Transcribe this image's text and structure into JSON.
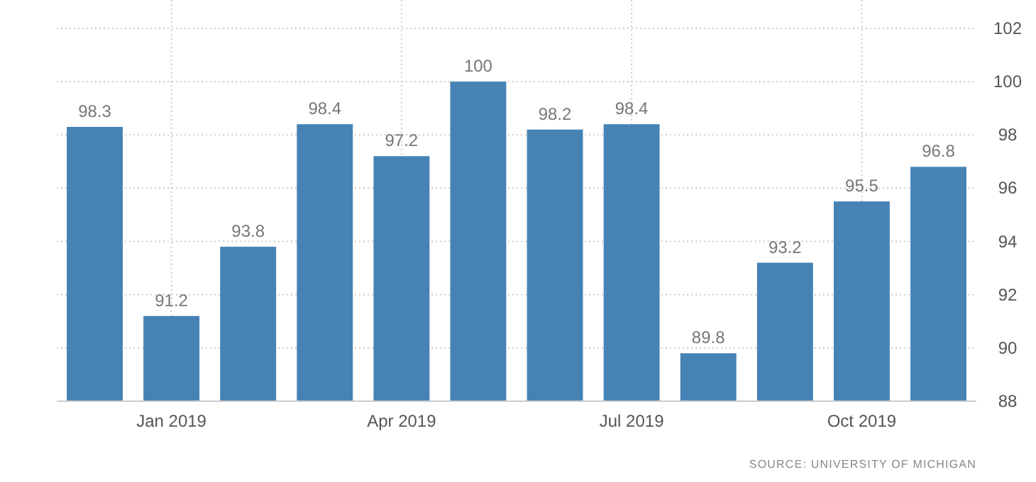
{
  "chart_data": {
    "type": "bar",
    "categories": [
      null,
      "Jan 2019",
      null,
      null,
      "Apr 2019",
      null,
      null,
      "Jul 2019",
      null,
      null,
      "Oct 2019",
      null
    ],
    "values": [
      98.3,
      91.2,
      93.8,
      98.4,
      97.2,
      100,
      98.2,
      98.4,
      89.8,
      93.2,
      95.5,
      96.8
    ],
    "color": "#4682b4",
    "ylim": [
      88,
      102
    ],
    "yticks": [
      88,
      90,
      92,
      94,
      96,
      98,
      100,
      102
    ],
    "grid": true,
    "data_labels": true,
    "annotations": [
      "SOURCE: UNIVERSITY OF MICHIGAN"
    ]
  }
}
